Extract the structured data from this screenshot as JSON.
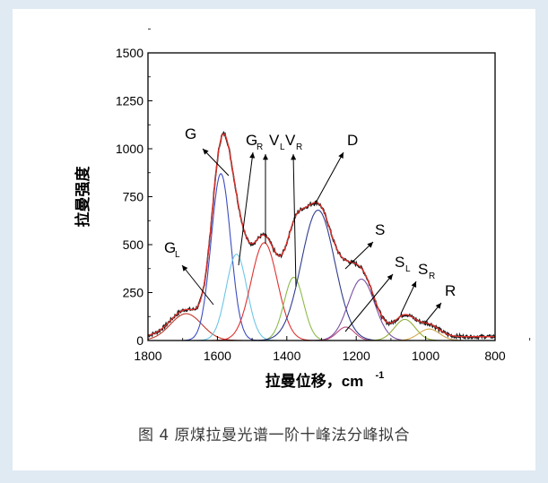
{
  "caption": "图 4 原煤拉曼光谱一阶十峰法分峰拟合",
  "chart_data": {
    "type": "line",
    "title": "",
    "xlabel": "拉曼位移，cm",
    "xlabel_sup": "-1",
    "ylabel": "拉曼强度",
    "xlim": [
      1800,
      800
    ],
    "ylim": [
      0,
      1500
    ],
    "x_ticks": [
      1800,
      1600,
      1400,
      1200,
      1000,
      800
    ],
    "y_ticks": [
      0,
      250,
      500,
      750,
      1000,
      1250,
      1500
    ],
    "x_reversed": true,
    "peaks": [
      {
        "name": "GL",
        "center": 1690,
        "height": 140,
        "width": 45,
        "color": "#c0392b"
      },
      {
        "name": "G",
        "center": 1590,
        "height": 870,
        "width": 28,
        "color": "#3b4cc0"
      },
      {
        "name": "GR",
        "center": 1545,
        "height": 450,
        "width": 30,
        "color": "#6ec6e6"
      },
      {
        "name": "VL",
        "center": 1465,
        "height": 510,
        "width": 38,
        "color": "#e03131"
      },
      {
        "name": "VR",
        "center": 1380,
        "height": 330,
        "width": 28,
        "color": "#8dbb4a"
      },
      {
        "name": "D",
        "center": 1310,
        "height": 680,
        "width": 48,
        "color": "#2f3d8f"
      },
      {
        "name": "S",
        "center": 1185,
        "height": 320,
        "width": 38,
        "color": "#7a4fa3"
      },
      {
        "name": "SL",
        "center": 1230,
        "height": 70,
        "width": 25,
        "color": "#b84a7a"
      },
      {
        "name": "SR",
        "center": 1060,
        "height": 110,
        "width": 30,
        "color": "#8fae3a"
      },
      {
        "name": "R",
        "center": 990,
        "height": 60,
        "width": 30,
        "color": "#d4a84a"
      }
    ],
    "peak_labels": [
      {
        "text": "G",
        "sub": "L"
      },
      {
        "text": "G",
        "sub": ""
      },
      {
        "text": "G",
        "sub": "R"
      },
      {
        "text": "V",
        "sub": "L"
      },
      {
        "text": "V",
        "sub": "R"
      },
      {
        "text": "D",
        "sub": ""
      },
      {
        "text": "S",
        "sub": ""
      },
      {
        "text": "S",
        "sub": "L"
      },
      {
        "text": "S",
        "sub": "R"
      },
      {
        "text": "R",
        "sub": ""
      }
    ]
  }
}
